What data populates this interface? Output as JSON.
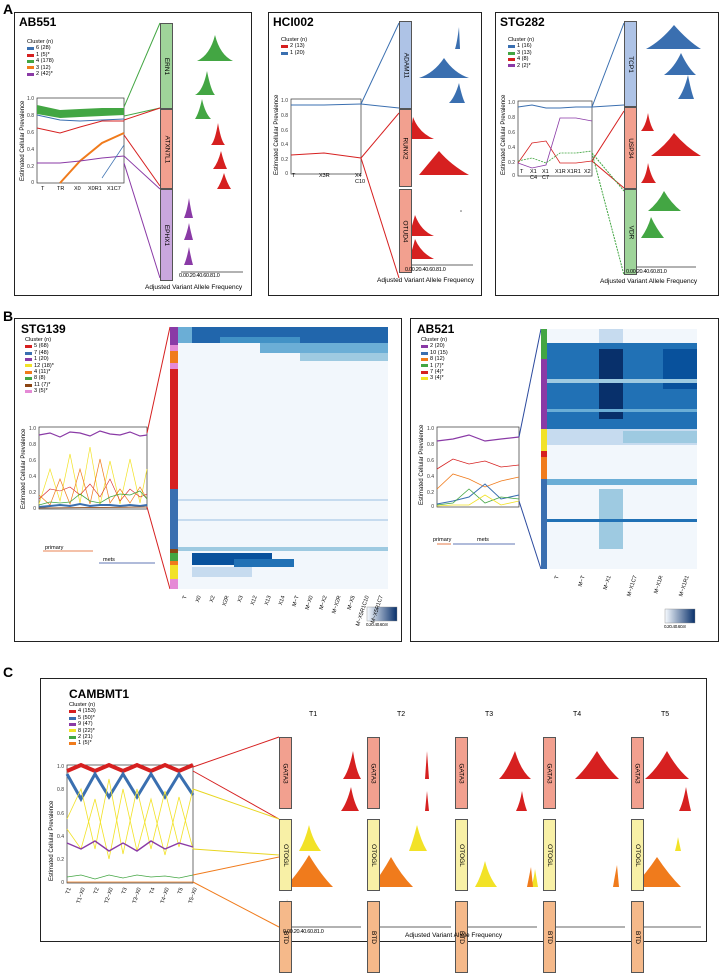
{
  "figure": {
    "panel_letters": [
      "A",
      "B",
      "C"
    ],
    "common": {
      "ylabel": "Estimated Cellular Prevalence",
      "xlabel": "Adjusted Variant Allele Frequency",
      "legend_title": "Cluster (n)",
      "vaf_ticks": [
        "0.0",
        "0.2",
        "0.4",
        "0.6",
        "0.8",
        "1.0"
      ],
      "prev_ticks": [
        "0",
        "0.2",
        "0.4",
        "0.6",
        "0.8",
        "1.0"
      ]
    },
    "panelA": {
      "ab551": {
        "title": "AB551",
        "legend": [
          {
            "label": "6 (28)",
            "color": "#3a6fb0"
          },
          {
            "label": "1 (5)*",
            "color": "#d62020"
          },
          {
            "label": "4 (178)",
            "color": "#43a643"
          },
          {
            "label": "3 (12)",
            "color": "#f07b1c"
          },
          {
            "label": "2 (42)*",
            "color": "#8a3aa6"
          }
        ],
        "xticks": [
          "T",
          "TR",
          "X0",
          "X0R1",
          "X1C7"
        ],
        "genes": [
          "ERN1",
          "ATXN7L1",
          "EPHX1"
        ],
        "gene_colors": [
          "#9fd49a",
          "#f2a08f",
          "#c9a7de"
        ]
      },
      "hci002": {
        "title": "HCI002",
        "legend": [
          {
            "label": "2 (13)",
            "color": "#d62020"
          },
          {
            "label": "1 (20)",
            "color": "#3a6fb0"
          }
        ],
        "xticks": [
          "T",
          "X3R",
          "X4 C10"
        ],
        "genes": [
          "ADAM11",
          "RUNX2",
          "OTUD4"
        ],
        "gene_colors": [
          "#aec3e6",
          "#f2a08f",
          "#f2a08f"
        ]
      },
      "stg282": {
        "title": "STG282",
        "legend": [
          {
            "label": "1 (16)",
            "color": "#3a6fb0"
          },
          {
            "label": "3 (13)",
            "color": "#43a643"
          },
          {
            "label": "4 (8)",
            "color": "#d62020"
          },
          {
            "label": "2 (2)*",
            "color": "#8a3aa6"
          }
        ],
        "xticks": [
          "T",
          "X1 C4",
          "X1 C7",
          "X1R",
          "X1R1",
          "X2"
        ],
        "genes": [
          "TCP1",
          "USP34",
          "VDR"
        ],
        "gene_colors": [
          "#aec3e6",
          "#f2a08f",
          "#9fd49a"
        ]
      }
    },
    "panelB": {
      "stg139": {
        "title": "STG139",
        "legend": [
          {
            "label": "5 (68)",
            "color": "#d62020"
          },
          {
            "label": "7 (48)",
            "color": "#3a6fb0"
          },
          {
            "label": "1 (20)",
            "color": "#8a3aa6"
          },
          {
            "label": "12 (18)*",
            "color": "#f2e227"
          },
          {
            "label": "4 (11)*",
            "color": "#f07b1c"
          },
          {
            "label": "8 (8)",
            "color": "#43a643"
          },
          {
            "label": "11 (7)*",
            "color": "#8b4513"
          },
          {
            "label": "3 (5)*",
            "color": "#e58ad6"
          }
        ],
        "columns": [
          "T",
          "X0",
          "X2",
          "X2R",
          "X3",
          "X12",
          "X13",
          "X14",
          "M~T",
          "M~X0",
          "M~X2",
          "M~X2R",
          "M~X5",
          "M~X5R1C10",
          "M~X5R1C7"
        ],
        "groups": [
          "primary",
          "mets"
        ],
        "colorbar": [
          "0.2",
          "0.4",
          "0.6",
          "0.8"
        ]
      },
      "ab521": {
        "title": "AB521",
        "legend": [
          {
            "label": "2 (20)",
            "color": "#8a3aa6"
          },
          {
            "label": "10 (15)",
            "color": "#3a6fb0"
          },
          {
            "label": "8 (12)",
            "color": "#f07b1c"
          },
          {
            "label": "1 (7)*",
            "color": "#43a643"
          },
          {
            "label": "7 (4)*",
            "color": "#d62020"
          },
          {
            "label": "3 (4)*",
            "color": "#f2e227"
          }
        ],
        "columns": [
          "T",
          "M~T",
          "M~X1",
          "M~X1C7",
          "M~X1R",
          "M~X1R1"
        ],
        "groups": [
          "primary",
          "mets"
        ],
        "colorbar": [
          "0.2",
          "0.4",
          "0.6",
          "0.8"
        ]
      }
    },
    "panelC": {
      "title": "CAMBMT1",
      "legend": [
        {
          "label": "4 (153)",
          "color": "#d62020"
        },
        {
          "label": "5 (50)*",
          "color": "#3a6fb0"
        },
        {
          "label": "9 (47)",
          "color": "#8a3aa6"
        },
        {
          "label": "8 (22)*",
          "color": "#f2e227"
        },
        {
          "label": "2 (21)",
          "color": "#43a643"
        },
        {
          "label": "1 (5)*",
          "color": "#f07b1c"
        }
      ],
      "xticks": [
        "T1",
        "T1~X0",
        "T2",
        "T2~X0",
        "T3",
        "T3~X0",
        "T4",
        "T4~X0",
        "T5",
        "T5~X0"
      ],
      "columns": [
        "T1",
        "T2",
        "T3",
        "T4",
        "T5"
      ],
      "genes": [
        "GATA3",
        "OTOGL",
        "BTD"
      ],
      "gene_colors": [
        "#f2a08f",
        "#f8f0a6",
        "#f5b98a"
      ]
    }
  }
}
